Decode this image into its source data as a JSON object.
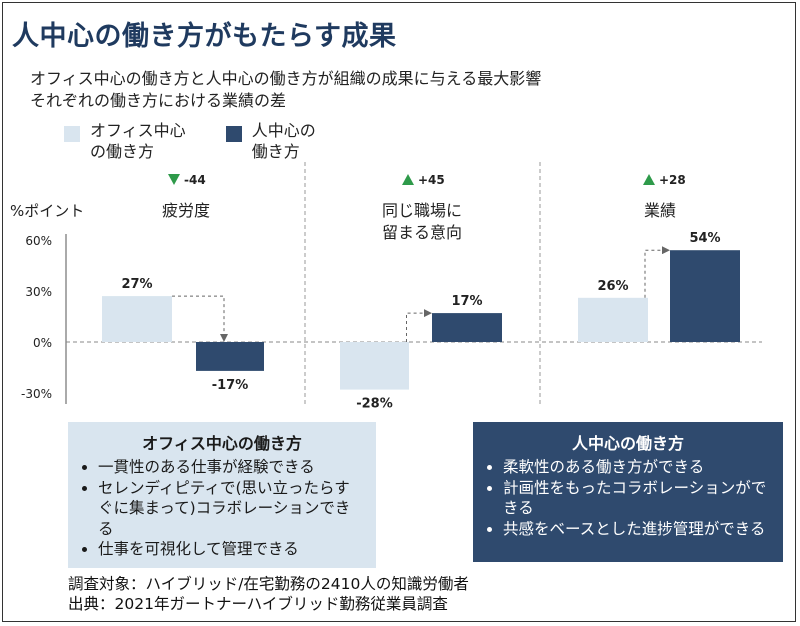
{
  "title": "人中心の働き方がもたらす成果",
  "subtitle_line1": "オフィス中心の働き方と人中心の働き方が組織の成果に与える最大影響",
  "subtitle_line2": "それぞれの働き方における業績の差",
  "legend": [
    {
      "label": "オフィス中心\nの働き方",
      "color": "#d9e5ef"
    },
    {
      "label": "人中心の\n働き方",
      "color": "#2f4a6e"
    }
  ],
  "chart_data": {
    "type": "bar",
    "ylabel": "%ポイント",
    "yticks": [
      60,
      30,
      0,
      -30
    ],
    "ytick_labels": [
      "60%",
      "30%",
      "0%",
      "-30%"
    ],
    "ylim": [
      -30,
      60
    ],
    "categories": [
      "疲労度",
      "同じ職場に\n留まる意向",
      "業績"
    ],
    "series": [
      {
        "name": "オフィス中心の働き方",
        "values": [
          27,
          -28,
          26
        ],
        "labels": [
          "27%",
          "-28%",
          "26%"
        ]
      },
      {
        "name": "人中心の働き方",
        "values": [
          -17,
          17,
          54
        ],
        "labels": [
          "-17%",
          "17%",
          "54%"
        ]
      }
    ],
    "deltas": [
      {
        "label": "-44",
        "direction": "down",
        "color": "#2e9a4a"
      },
      {
        "label": "+45",
        "direction": "up",
        "color": "#2e9a4a"
      },
      {
        "label": "+28",
        "direction": "up",
        "color": "#2e9a4a"
      }
    ],
    "colors": {
      "office": "#d9e5ef",
      "human": "#2f4a6e"
    }
  },
  "box_office": {
    "title": "オフィス中心の働き方",
    "items": [
      "一貫性のある仕事が経験できる",
      "セレンディピティで(思い立ったらすぐに集まって)コラボレーションできる",
      "仕事を可視化して管理できる"
    ]
  },
  "box_human": {
    "title": "人中心の働き方",
    "items": [
      "柔軟性のある働き方ができる",
      "計画性をもったコラボレーションができる",
      "共感をベースとした進捗管理ができる"
    ]
  },
  "footer_line1": "調査対象：ハイブリッド/在宅勤務の2410人の知識労働者",
  "footer_line2": "出典：2021年ガートナーハイブリッド勤務従業員調査"
}
